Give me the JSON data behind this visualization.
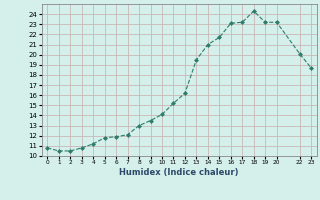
{
  "x": [
    0,
    1,
    2,
    3,
    4,
    5,
    6,
    7,
    8,
    9,
    10,
    11,
    12,
    13,
    14,
    15,
    16,
    17,
    18,
    19,
    20,
    22,
    23
  ],
  "y": [
    10.8,
    10.5,
    10.5,
    10.8,
    11.2,
    11.8,
    11.9,
    12.1,
    13.0,
    13.5,
    14.1,
    15.2,
    16.2,
    19.5,
    21.0,
    21.7,
    23.1,
    23.2,
    24.3,
    23.2,
    23.2,
    20.1,
    18.7
  ],
  "line_color": "#2e7d6b",
  "marker_color": "#2e7d6b",
  "bg_color": "#d5efeb",
  "grid_color": "#c8b8b8",
  "xlabel": "Humidex (Indice chaleur)",
  "xlim": [
    -0.5,
    23.5
  ],
  "ylim": [
    10,
    25
  ],
  "yticks": [
    10,
    11,
    12,
    13,
    14,
    15,
    16,
    17,
    18,
    19,
    20,
    21,
    22,
    23,
    24
  ],
  "xticks": [
    0,
    1,
    2,
    3,
    4,
    5,
    6,
    7,
    8,
    9,
    10,
    11,
    12,
    13,
    14,
    15,
    16,
    17,
    18,
    19,
    20,
    22,
    23
  ],
  "xtick_labels": [
    "0",
    "1",
    "2",
    "3",
    "4",
    "5",
    "6",
    "7",
    "8",
    "9",
    "10",
    "11",
    "12",
    "13",
    "14",
    "15",
    "16",
    "17",
    "18",
    "19",
    "20",
    "22",
    "23"
  ]
}
